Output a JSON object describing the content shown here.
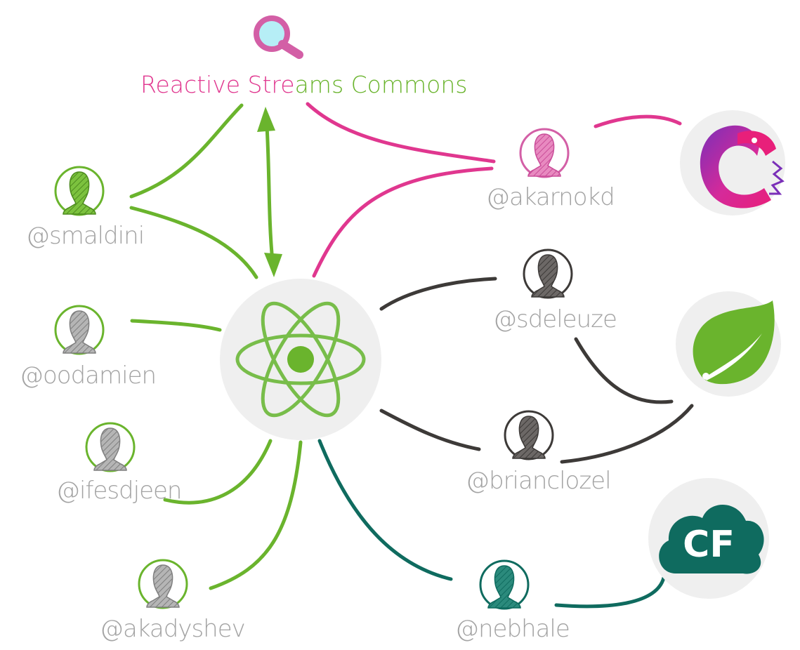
{
  "title": {
    "part1": "Reactive Stre",
    "part2": "ams Commons"
  },
  "hub": {
    "icon": "atom-icon"
  },
  "logos": {
    "rx": "reactivex-icon",
    "spring": "spring-leaf-icon",
    "cf_text": "CF"
  },
  "contributors": {
    "smaldini": "@smaldini",
    "oodamien": "@oodamien",
    "ifesdjeen": "@ifesdjeen",
    "akadyshev": "@akadyshev",
    "akarnokd": "@akarnokd",
    "sdeleuze": "@sdeleuze",
    "brianclozel": "@brianclozel",
    "nebhale": "@nebhale"
  },
  "colors": {
    "green": "#6ab42d",
    "pink": "#e0378f",
    "dark": "#3d3a38",
    "teal": "#0f6b5f",
    "gray_circle": "#efefef",
    "cf_cloud": "#0f6b5f"
  }
}
